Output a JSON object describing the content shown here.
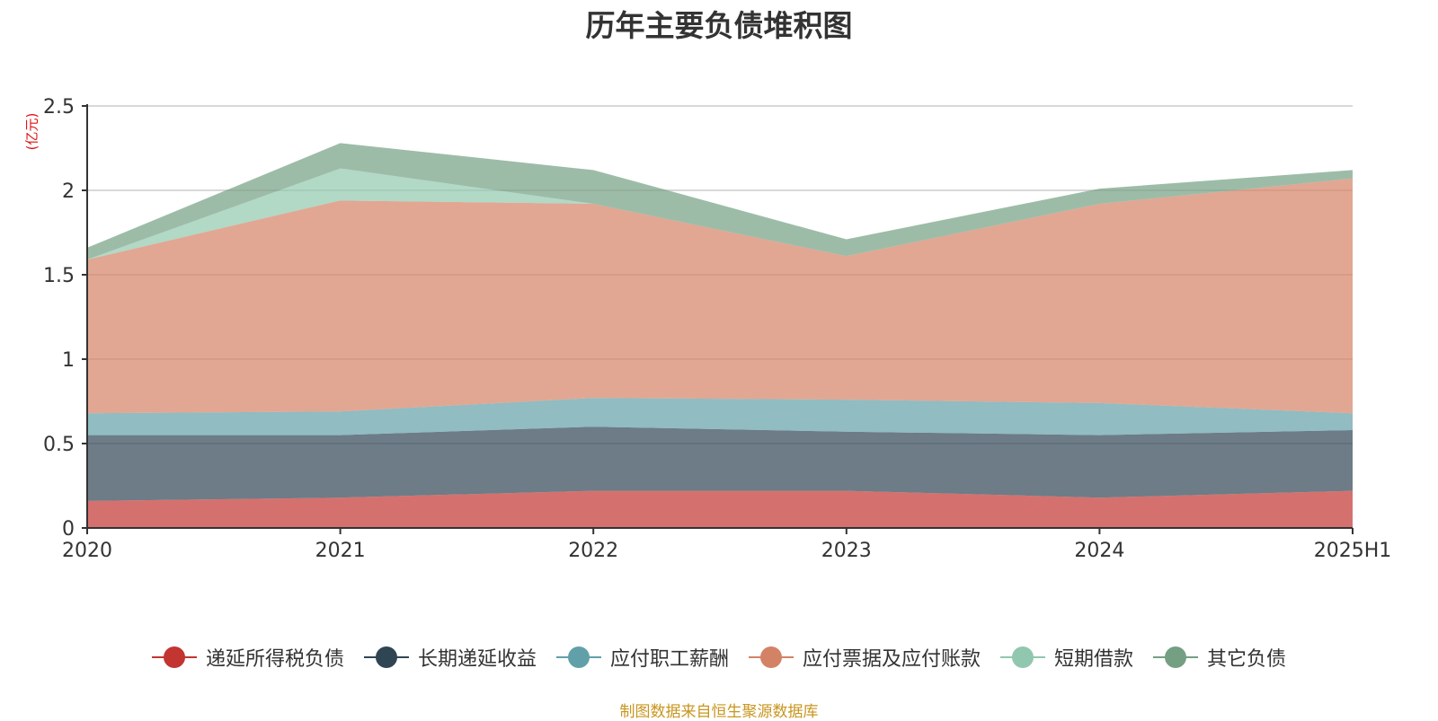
{
  "chart_data": {
    "type": "area",
    "stacked": true,
    "title": "历年主要负债堆积图",
    "unit_label": "(亿元)",
    "categories": [
      "2020",
      "2021",
      "2022",
      "2023",
      "2024",
      "2025H1"
    ],
    "y_ticks": [
      "0",
      "0.5",
      "1",
      "1.5",
      "2",
      "2.5"
    ],
    "ylim": [
      0,
      2.5
    ],
    "grid": true,
    "legend_position": "bottom",
    "series": [
      {
        "name": "递延所得税负债",
        "color": "#c23531",
        "values": [
          0.16,
          0.18,
          0.22,
          0.22,
          0.18,
          0.22
        ]
      },
      {
        "name": "长期递延收益",
        "color": "#2f4554",
        "values": [
          0.39,
          0.37,
          0.38,
          0.35,
          0.37,
          0.36
        ]
      },
      {
        "name": "应付职工薪酬",
        "color": "#61a0a8",
        "values": [
          0.13,
          0.14,
          0.17,
          0.19,
          0.19,
          0.1
        ]
      },
      {
        "name": "应付票据及应付账款",
        "color": "#d48265",
        "values": [
          0.91,
          1.25,
          1.15,
          0.85,
          1.18,
          1.39
        ]
      },
      {
        "name": "短期借款",
        "color": "#91c7ae",
        "values": [
          0.0,
          0.19,
          0.0,
          0.0,
          0.0,
          0.0
        ]
      },
      {
        "name": "其它负债",
        "color": "#749f83",
        "values": [
          0.07,
          0.15,
          0.2,
          0.1,
          0.09,
          0.05
        ]
      }
    ],
    "source": "制图数据来自恒生聚源数据库"
  }
}
